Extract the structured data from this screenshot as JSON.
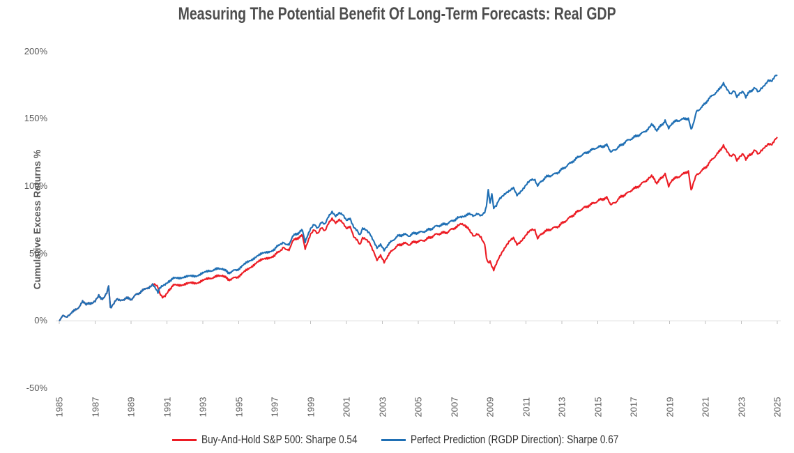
{
  "title": "Measuring The Potential Benefit Of Long-Term Forecasts: Real GDP",
  "y_axis": {
    "title": "Cumulative Excess Returns %",
    "ticks": [
      "200%",
      "150%",
      "100%",
      "50%",
      "0%",
      "-50%"
    ]
  },
  "x_axis": {
    "ticks": [
      "1985",
      "1987",
      "1989",
      "1991",
      "1993",
      "1995",
      "1997",
      "1999",
      "2001",
      "2003",
      "2005",
      "2007",
      "2009",
      "2011",
      "2013",
      "2015",
      "2017",
      "2019",
      "2021",
      "2023",
      "2025"
    ]
  },
  "legend": {
    "items": [
      {
        "label": "Buy-And-Hold S&P 500: Sharpe 0.54",
        "color": "#EC1C24"
      },
      {
        "label": "Perfect Prediction (RGDP Direction): Sharpe 0.67",
        "color": "#1F6FB4"
      }
    ]
  },
  "colors": {
    "red_series": "#EC1C24",
    "blue_series": "#1F6FB4",
    "axis_line": "#D9D9D9",
    "tick_mark": "#BFBFBF",
    "axis_text": "#595959",
    "title_text": "#4d4d4d"
  },
  "chart_data": {
    "type": "line",
    "title": "Measuring The Potential Benefit Of Long-Term Forecasts: Real GDP",
    "xlabel": "",
    "ylabel": "Cumulative Excess Returns %",
    "ylim": [
      -50,
      200
    ],
    "xlim": [
      1985,
      2025
    ],
    "grid": false,
    "legend_position": "bottom",
    "x": [
      1985.0,
      1985.2,
      1985.4,
      1985.6,
      1986.0,
      1986.3,
      1986.5,
      1986.8,
      1987.0,
      1987.2,
      1987.45,
      1987.65,
      1987.75,
      1987.85,
      1988.0,
      1988.2,
      1988.4,
      1988.7,
      1989.0,
      1989.3,
      1989.6,
      1990.0,
      1990.2,
      1990.35,
      1990.5,
      1990.6,
      1990.75,
      1990.9,
      1991.1,
      1991.4,
      1991.9,
      1992.4,
      1992.8,
      1993.35,
      1993.7,
      1994.1,
      1994.4,
      1994.7,
      1995.0,
      1995.5,
      1996.0,
      1996.5,
      1997.0,
      1997.3,
      1997.5,
      1997.8,
      1998.0,
      1998.3,
      1998.55,
      1998.7,
      1998.85,
      1999.0,
      1999.2,
      1999.4,
      1999.6,
      1999.8,
      2000.0,
      2000.2,
      2000.4,
      2000.6,
      2000.8,
      2001.0,
      2001.2,
      2001.4,
      2001.6,
      2001.75,
      2001.9,
      2002.1,
      2002.3,
      2002.5,
      2002.7,
      2002.9,
      2003.1,
      2003.3,
      2003.6,
      2003.9,
      2004.2,
      2004.5,
      2004.8,
      2005.1,
      2005.4,
      2005.7,
      2006.0,
      2006.3,
      2006.6,
      2006.9,
      2007.2,
      2007.4,
      2007.6,
      2007.9,
      2008.1,
      2008.3,
      2008.5,
      2008.7,
      2008.8,
      2008.9,
      2009.0,
      2009.1,
      2009.2,
      2009.35,
      2009.5,
      2009.7,
      2009.9,
      2010.1,
      2010.3,
      2010.5,
      2010.7,
      2010.9,
      2011.1,
      2011.3,
      2011.5,
      2011.65,
      2011.9,
      2012.2,
      2012.5,
      2012.8,
      2013.1,
      2013.4,
      2013.7,
      2014.0,
      2014.3,
      2014.6,
      2014.9,
      2015.2,
      2015.5,
      2015.75,
      2016.0,
      2016.3,
      2016.6,
      2016.9,
      2017.2,
      2017.5,
      2017.8,
      2018.0,
      2018.25,
      2018.5,
      2018.75,
      2018.95,
      2019.1,
      2019.4,
      2019.7,
      2020.05,
      2020.2,
      2020.35,
      2020.5,
      2020.8,
      2021.1,
      2021.4,
      2021.7,
      2022.0,
      2022.2,
      2022.4,
      2022.6,
      2022.75,
      2022.9,
      2023.1,
      2023.25,
      2023.5,
      2023.75,
      2023.95,
      2024.1,
      2024.3,
      2024.5,
      2024.7,
      2024.9,
      2025.0
    ],
    "series": [
      {
        "name": "Buy-And-Hold S&P 500: Sharpe 0.54",
        "color": "#EC1C24",
        "values": [
          0,
          4,
          2.5,
          5,
          9,
          14,
          12,
          13.5,
          15,
          18.5,
          16,
          21,
          26,
          10,
          12.5,
          16,
          14.5,
          17,
          16,
          19.5,
          22,
          25,
          27,
          26.5,
          24.5,
          20,
          17.5,
          19,
          23,
          26.5,
          27,
          28,
          28.5,
          31.5,
          32.5,
          34,
          30.5,
          31.5,
          33,
          38,
          43.5,
          46,
          48.5,
          52,
          54.5,
          52,
          59,
          61.5,
          63,
          53,
          58,
          64,
          68,
          65,
          69,
          66,
          72,
          76,
          73,
          75,
          72,
          68,
          70,
          63,
          60,
          56,
          61,
          60,
          58,
          52,
          45,
          48,
          43,
          48,
          53,
          56,
          57.5,
          56.5,
          58.5,
          59,
          60,
          62,
          64,
          65,
          65.5,
          68,
          70,
          72,
          71,
          66,
          62,
          64,
          62,
          57,
          47,
          43,
          44,
          40,
          37,
          42,
          47,
          52,
          56,
          59,
          61,
          56.5,
          59,
          62,
          65,
          67,
          67,
          61,
          65,
          67,
          68.5,
          70,
          73,
          76,
          79,
          82,
          84,
          86,
          88,
          90,
          91,
          86,
          88,
          92,
          94,
          97,
          99,
          102,
          105,
          108,
          102,
          105,
          109,
          100,
          104,
          106,
          108,
          111,
          97,
          103,
          108,
          111,
          115,
          120,
          124,
          130,
          126,
          122,
          123,
          118,
          121,
          124,
          120,
          123,
          126,
          123,
          126,
          129,
          131,
          130,
          134,
          136
        ]
      },
      {
        "name": "Perfect Prediction (RGDP Direction): Sharpe 0.67",
        "color": "#1F6FB4",
        "values": [
          0,
          4,
          2.5,
          5,
          9,
          14,
          12,
          13.5,
          15,
          18.5,
          16,
          21,
          26,
          10,
          12.5,
          16,
          14.5,
          17,
          16,
          19.5,
          22,
          25,
          27,
          24,
          20.5,
          24,
          26,
          27.5,
          29.5,
          31.5,
          32.5,
          33,
          34,
          37,
          38,
          39,
          35.5,
          37,
          38.5,
          43.5,
          48,
          50.5,
          53,
          57,
          58,
          56,
          62.5,
          65,
          67,
          58,
          63,
          68,
          72,
          69,
          73,
          71,
          77,
          81,
          78,
          80,
          78,
          74,
          76,
          70,
          67,
          63,
          68,
          67,
          65,
          60,
          54,
          56,
          52,
          56,
          60,
          63,
          64,
          63,
          65,
          65.5,
          66.5,
          68,
          70,
          71,
          72,
          74,
          76,
          77,
          78,
          79,
          77,
          79,
          78,
          81,
          85,
          97,
          87,
          94,
          83,
          85,
          90,
          93,
          95,
          96,
          98,
          93,
          96,
          99,
          102,
          104,
          104,
          100,
          104,
          107,
          108,
          110,
          113,
          116,
          119,
          122,
          124,
          126,
          128,
          129,
          130,
          125,
          127,
          130,
          133,
          135,
          137,
          139,
          142,
          146,
          141,
          144,
          148,
          143,
          146,
          148,
          149,
          150,
          142,
          147,
          155,
          158,
          163,
          167,
          170,
          176,
          172,
          168,
          170,
          165,
          168,
          170,
          166,
          170,
          172,
          169,
          172,
          175,
          178,
          177,
          181,
          182
        ]
      }
    ]
  }
}
